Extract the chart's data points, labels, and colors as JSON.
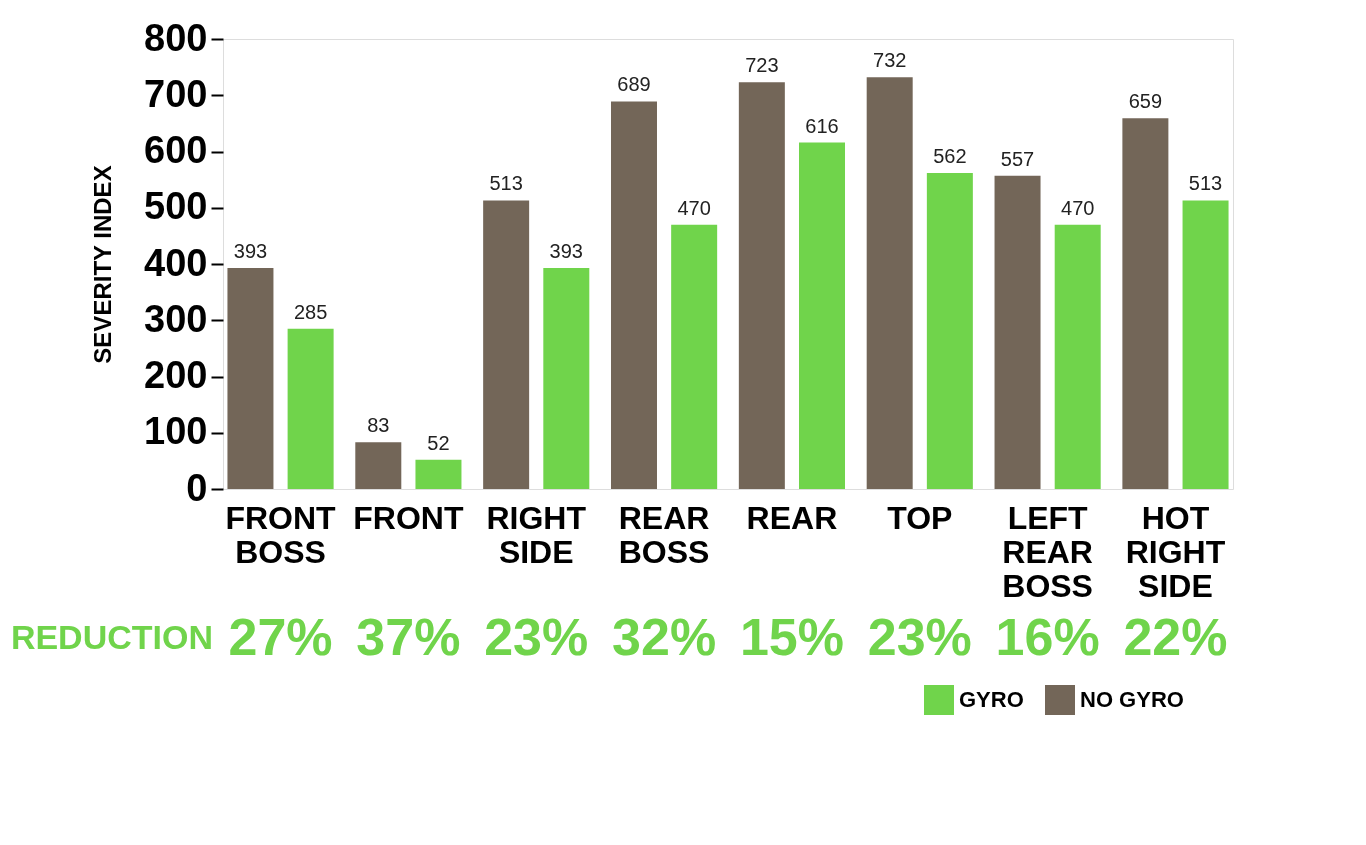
{
  "chart_data": {
    "type": "bar",
    "ylabel": "SEVERITY INDEX",
    "categories": [
      "FRONT BOSS",
      "FRONT",
      "RIGHT SIDE",
      "REAR BOSS",
      "REAR",
      "TOP",
      "LEFT REAR BOSS",
      "HOT RIGHT SIDE"
    ],
    "series": [
      {
        "name": "NO GYRO",
        "color": "#736658",
        "values": [
          393,
          83,
          513,
          689,
          723,
          732,
          557,
          659
        ]
      },
      {
        "name": "GYRO",
        "color": "#70d44b",
        "values": [
          285,
          52,
          393,
          470,
          616,
          562,
          470,
          513
        ]
      }
    ],
    "ylim": [
      0,
      800
    ],
    "yticks": [
      0,
      100,
      200,
      300,
      400,
      500,
      600,
      700,
      800
    ],
    "data_labels": true,
    "grid": false,
    "legend": "bottom right",
    "annotations": [
      "REDUCTION",
      "27%",
      "37%",
      "23%",
      "32%",
      "15%",
      "23%",
      "16%",
      "22%"
    ]
  }
}
